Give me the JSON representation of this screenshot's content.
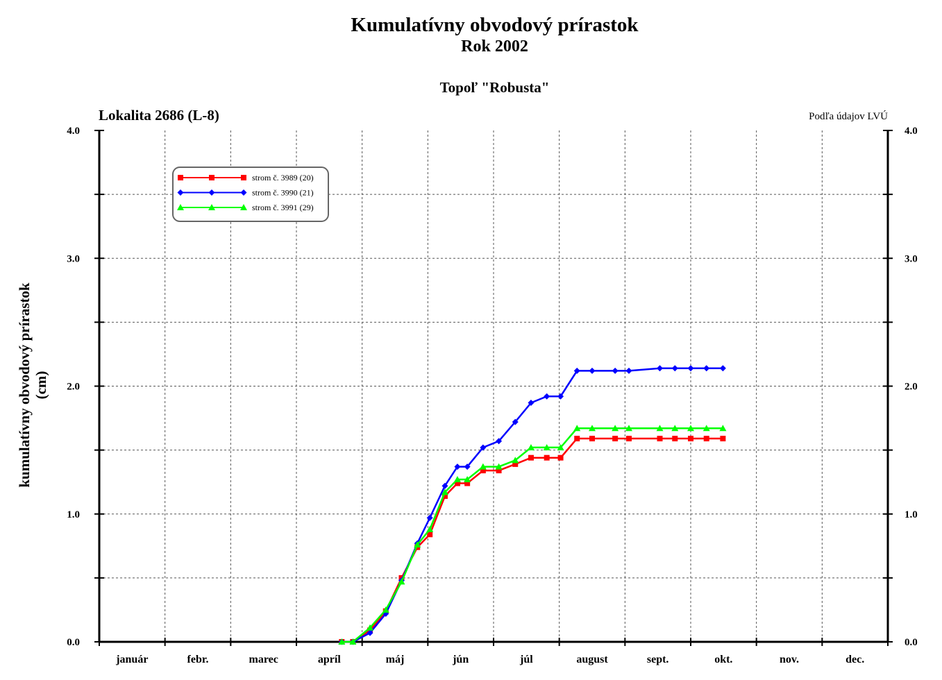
{
  "chart_data": {
    "type": "line",
    "title": "Kumulatívny obvodový prírastok",
    "subtitle": "Rok 2002",
    "species": "Topoľ \"Robusta\"",
    "site": "Lokalita 2686 (L-8)",
    "source_note": "Podľa údajov LVÚ",
    "ylabel_line1": "kumulatívny obvodový prírastok",
    "ylabel_line2": "(cm)",
    "ylim": [
      0,
      4
    ],
    "xlim": [
      0,
      12
    ],
    "yticks": [
      "0.0",
      "1.0",
      "2.0",
      "3.0",
      "4.0"
    ],
    "yticks_right": [
      "0.0",
      "1.0",
      "2.0",
      "3.0",
      "4.0"
    ],
    "months": [
      "január",
      "febr.",
      "marec",
      "apríl",
      "máj",
      "jún",
      "júl",
      "august",
      "sept.",
      "okt.",
      "nov.",
      "dec."
    ],
    "grid": true,
    "legend_position": "top-left",
    "series": [
      {
        "name": "strom č. 3989 (20)",
        "color": "#ff0000",
        "marker": "square",
        "x": [
          3.69,
          3.86,
          4.12,
          4.36,
          4.6,
          4.84,
          5.03,
          5.26,
          5.45,
          5.6,
          5.84,
          6.08,
          6.33,
          6.57,
          6.81,
          7.02,
          7.27,
          7.5,
          7.85,
          8.06,
          8.53,
          8.76,
          9.0,
          9.24,
          9.49
        ],
        "values": [
          0.0,
          0.0,
          0.09,
          0.24,
          0.5,
          0.74,
          0.84,
          1.14,
          1.24,
          1.24,
          1.34,
          1.34,
          1.39,
          1.44,
          1.44,
          1.44,
          1.59,
          1.59,
          1.59,
          1.59,
          1.59,
          1.59,
          1.59,
          1.59,
          1.59
        ]
      },
      {
        "name": "strom č. 3990 (21)",
        "color": "#0000ff",
        "marker": "diamond",
        "x": [
          3.69,
          3.86,
          4.12,
          4.36,
          4.6,
          4.84,
          5.03,
          5.26,
          5.45,
          5.6,
          5.84,
          6.08,
          6.33,
          6.57,
          6.81,
          7.02,
          7.27,
          7.5,
          7.85,
          8.06,
          8.53,
          8.76,
          9.0,
          9.24,
          9.49
        ],
        "values": [
          0.0,
          0.0,
          0.07,
          0.22,
          0.48,
          0.77,
          0.97,
          1.22,
          1.37,
          1.37,
          1.52,
          1.57,
          1.72,
          1.87,
          1.92,
          1.92,
          2.12,
          2.12,
          2.12,
          2.12,
          2.14,
          2.14,
          2.14,
          2.14,
          2.14
        ]
      },
      {
        "name": "strom č. 3991 (29)",
        "color": "#00ff00",
        "marker": "triangle",
        "x": [
          3.69,
          3.86,
          4.12,
          4.36,
          4.6,
          4.84,
          5.03,
          5.26,
          5.45,
          5.6,
          5.84,
          6.08,
          6.33,
          6.57,
          6.81,
          7.02,
          7.27,
          7.5,
          7.85,
          8.06,
          8.53,
          8.76,
          9.0,
          9.24,
          9.49
        ],
        "values": [
          0.0,
          0.0,
          0.11,
          0.25,
          0.47,
          0.76,
          0.88,
          1.17,
          1.27,
          1.27,
          1.37,
          1.37,
          1.42,
          1.52,
          1.52,
          1.52,
          1.67,
          1.67,
          1.67,
          1.67,
          1.67,
          1.67,
          1.67,
          1.67,
          1.67
        ]
      }
    ]
  }
}
